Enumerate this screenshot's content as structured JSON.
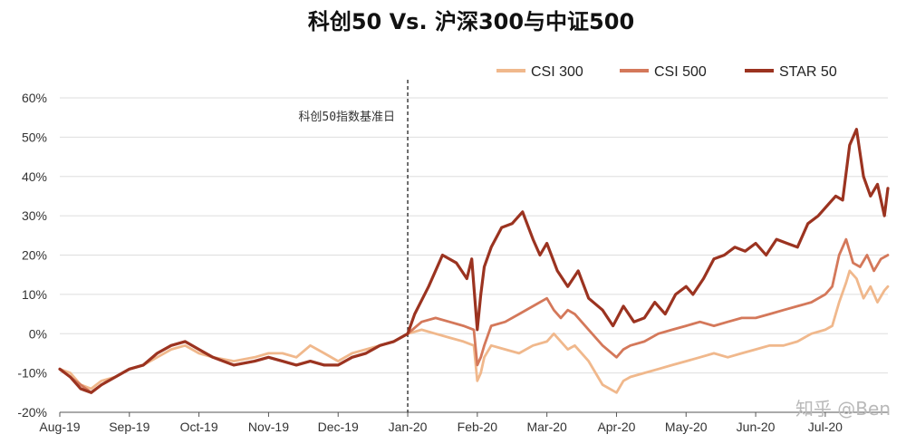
{
  "chart_data": {
    "type": "line",
    "title": "科创50 Vs. 沪深300与中证500",
    "xlabel": "",
    "ylabel": "",
    "ylim": [
      -20,
      60
    ],
    "yticks": [
      "60%",
      "50%",
      "40%",
      "30%",
      "20%",
      "10%",
      "0%",
      "-10%",
      "-20%"
    ],
    "xticks": [
      "Aug-19",
      "Sep-19",
      "Oct-19",
      "Nov-19",
      "Dec-19",
      "Jan-20",
      "Feb-20",
      "Mar-20",
      "Apr-20",
      "May-20",
      "Jun-20",
      "Jul-20"
    ],
    "x_range": [
      0,
      11.9
    ],
    "grid": "horizontal",
    "legend_position": "top-right",
    "annotation": {
      "text": "科创50指数基准日",
      "x": 5
    },
    "series": [
      {
        "name": "CSI 300",
        "color": "#f0b88c",
        "x": [
          0,
          0.15,
          0.3,
          0.45,
          0.6,
          0.8,
          1.0,
          1.2,
          1.4,
          1.6,
          1.8,
          2.0,
          2.2,
          2.5,
          2.8,
          3.0,
          3.2,
          3.4,
          3.6,
          3.8,
          4.0,
          4.2,
          4.4,
          4.6,
          4.8,
          5.0,
          5.2,
          5.4,
          5.6,
          5.8,
          5.95,
          6.0,
          6.05,
          6.1,
          6.2,
          6.4,
          6.6,
          6.8,
          7.0,
          7.1,
          7.2,
          7.3,
          7.4,
          7.6,
          7.8,
          8.0,
          8.1,
          8.2,
          8.4,
          8.6,
          8.8,
          9.0,
          9.2,
          9.4,
          9.6,
          9.8,
          10.0,
          10.2,
          10.4,
          10.6,
          10.8,
          11.0,
          11.1,
          11.2,
          11.3,
          11.35,
          11.45,
          11.55,
          11.65,
          11.75,
          11.85,
          11.9
        ],
        "values": [
          -9,
          -10,
          -13,
          -14,
          -12,
          -11,
          -9,
          -8,
          -6,
          -4,
          -3,
          -5,
          -6,
          -7,
          -6,
          -5,
          -5,
          -6,
          -3,
          -5,
          -7,
          -5,
          -4,
          -3,
          -2,
          0,
          1,
          0,
          -1,
          -2,
          -3,
          -12,
          -10,
          -6,
          -3,
          -4,
          -5,
          -3,
          -2,
          0,
          -2,
          -4,
          -3,
          -7,
          -13,
          -15,
          -12,
          -11,
          -10,
          -9,
          -8,
          -7,
          -6,
          -5,
          -6,
          -5,
          -4,
          -3,
          -3,
          -2,
          0,
          1,
          2,
          8,
          13,
          16,
          14,
          9,
          12,
          8,
          11,
          12
        ]
      },
      {
        "name": "CSI 500",
        "color": "#d4785a",
        "x": [
          0,
          0.15,
          0.3,
          0.45,
          0.6,
          0.8,
          1.0,
          1.2,
          1.4,
          1.6,
          1.8,
          2.0,
          2.2,
          2.5,
          2.8,
          3.0,
          3.2,
          3.4,
          3.6,
          3.8,
          4.0,
          4.2,
          4.4,
          4.6,
          4.8,
          5.0,
          5.2,
          5.4,
          5.6,
          5.8,
          5.95,
          6.0,
          6.05,
          6.1,
          6.2,
          6.4,
          6.6,
          6.8,
          7.0,
          7.1,
          7.2,
          7.3,
          7.4,
          7.6,
          7.8,
          8.0,
          8.1,
          8.2,
          8.4,
          8.6,
          8.8,
          9.0,
          9.2,
          9.4,
          9.6,
          9.8,
          10.0,
          10.2,
          10.4,
          10.6,
          10.8,
          11.0,
          11.1,
          11.2,
          11.3,
          11.4,
          11.5,
          11.6,
          11.7,
          11.8,
          11.9
        ],
        "values": [
          -9,
          -11,
          -13,
          -15,
          -13,
          -11,
          -9,
          -8,
          -5,
          -3,
          -2,
          -4,
          -6,
          -8,
          -7,
          -6,
          -7,
          -8,
          -7,
          -8,
          -8,
          -6,
          -5,
          -3,
          -2,
          0,
          3,
          4,
          3,
          2,
          1,
          -8,
          -6,
          -3,
          2,
          3,
          5,
          7,
          9,
          6,
          4,
          6,
          5,
          1,
          -3,
          -6,
          -4,
          -3,
          -2,
          0,
          1,
          2,
          3,
          2,
          3,
          4,
          4,
          5,
          6,
          7,
          8,
          10,
          12,
          20,
          24,
          18,
          17,
          20,
          16,
          19,
          20
        ]
      },
      {
        "name": "STAR 50",
        "color": "#9b3320",
        "x": [
          0,
          0.15,
          0.3,
          0.45,
          0.6,
          0.8,
          1.0,
          1.2,
          1.4,
          1.6,
          1.8,
          2.0,
          2.2,
          2.5,
          2.8,
          3.0,
          3.2,
          3.4,
          3.6,
          3.8,
          4.0,
          4.2,
          4.4,
          4.6,
          4.8,
          5.0,
          5.1,
          5.3,
          5.5,
          5.7,
          5.85,
          5.92,
          6.0,
          6.05,
          6.1,
          6.2,
          6.35,
          6.5,
          6.65,
          6.8,
          6.9,
          7.0,
          7.15,
          7.3,
          7.45,
          7.6,
          7.8,
          7.95,
          8.1,
          8.25,
          8.4,
          8.55,
          8.7,
          8.85,
          9.0,
          9.1,
          9.25,
          9.4,
          9.55,
          9.7,
          9.85,
          10.0,
          10.15,
          10.3,
          10.45,
          10.6,
          10.75,
          10.9,
          11.05,
          11.15,
          11.25,
          11.35,
          11.45,
          11.55,
          11.65,
          11.75,
          11.85,
          11.9
        ],
        "values": [
          -9,
          -11,
          -14,
          -15,
          -13,
          -11,
          -9,
          -8,
          -5,
          -3,
          -2,
          -4,
          -6,
          -8,
          -7,
          -6,
          -7,
          -8,
          -7,
          -8,
          -8,
          -6,
          -5,
          -3,
          -2,
          0,
          5,
          12,
          20,
          18,
          14,
          19,
          1,
          10,
          17,
          22,
          27,
          28,
          31,
          24,
          20,
          23,
          16,
          12,
          16,
          9,
          6,
          2,
          7,
          3,
          4,
          8,
          5,
          10,
          12,
          10,
          14,
          19,
          20,
          22,
          21,
          23,
          20,
          24,
          23,
          22,
          28,
          30,
          33,
          35,
          34,
          48,
          52,
          40,
          35,
          38,
          30,
          37
        ]
      }
    ]
  },
  "watermark": "知乎 @Ben"
}
